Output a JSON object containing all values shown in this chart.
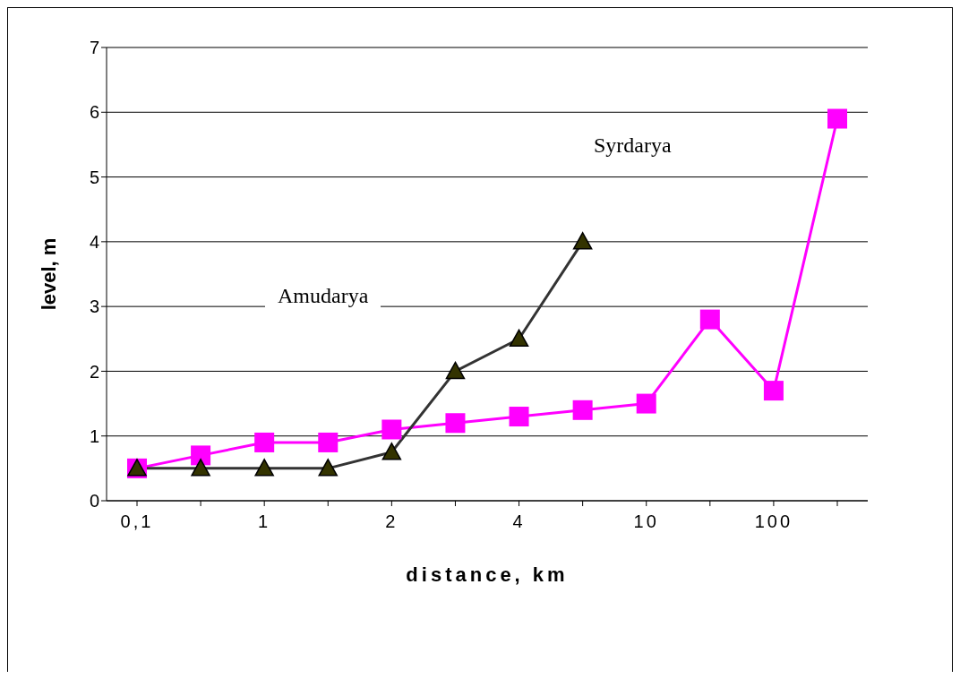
{
  "chart_data": {
    "type": "line",
    "xlabel": "distance, km",
    "ylabel": "level, m",
    "categories": [
      "0,1",
      null,
      "1",
      null,
      "2",
      null,
      "4",
      null,
      "10",
      null,
      "100",
      null
    ],
    "series": [
      {
        "color": "#ff00ff",
        "marker": "square",
        "values": [
          0.5,
          0.7,
          0.9,
          0.9,
          1.1,
          1.2,
          1.3,
          1.4,
          1.5,
          2.8,
          1.7,
          5.9
        ]
      },
      {
        "color": "#333333",
        "marker": "triangle",
        "values": [
          0.5,
          0.5,
          0.5,
          0.5,
          0.75,
          2,
          2.5,
          4,
          null,
          null,
          null,
          null
        ]
      }
    ],
    "annotations": [
      "Syrdarya",
      "Amudarya"
    ],
    "ylim": [
      0,
      7
    ],
    "yticks": [
      0,
      1,
      2,
      3,
      4,
      5,
      6,
      7
    ],
    "grid": "y",
    "legend": false,
    "line_style": "solid"
  }
}
